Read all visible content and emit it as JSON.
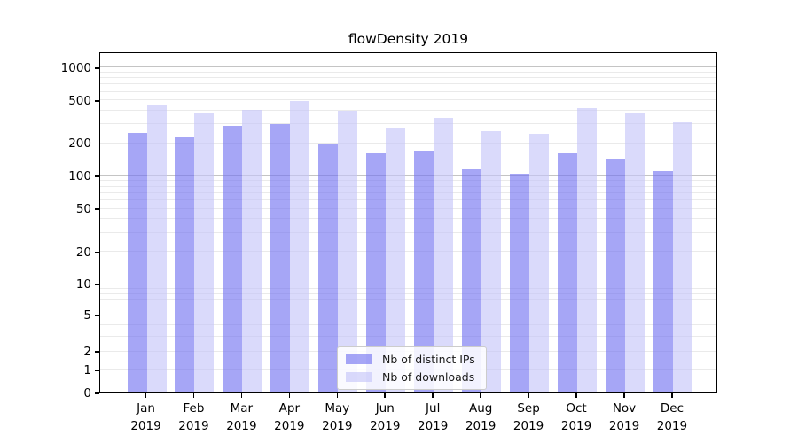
{
  "chart_data": {
    "type": "bar",
    "title": "flowDensity 2019",
    "scale": "symlog",
    "ylim": [
      0,
      1400
    ],
    "yticks": [
      0,
      1,
      2,
      5,
      10,
      20,
      50,
      100,
      200,
      500,
      1000
    ],
    "categories": [
      "Jan",
      "Feb",
      "Mar",
      "Apr",
      "May",
      "Jun",
      "Jul",
      "Aug",
      "Sep",
      "Oct",
      "Nov",
      "Dec"
    ],
    "year": "2019",
    "series": [
      {
        "key": "ips",
        "name": "Nb of distinct IPs",
        "color": "rgba(112,112,240,0.62)",
        "values": [
          250,
          225,
          290,
          300,
          195,
          160,
          170,
          115,
          105,
          160,
          145,
          110
        ]
      },
      {
        "key": "downloads",
        "name": "Nb of downloads",
        "color": "rgba(196,196,248,0.62)",
        "values": [
          450,
          375,
          405,
          485,
          395,
          280,
          340,
          260,
          245,
          420,
          375,
          310
        ]
      }
    ],
    "gridlines": {
      "minor": [
        1,
        2,
        3,
        4,
        5,
        6,
        7,
        8,
        9,
        20,
        30,
        40,
        50,
        60,
        70,
        80,
        90,
        200,
        300,
        400,
        500,
        600,
        700,
        800,
        900
      ],
      "major": [
        10,
        100,
        1000
      ]
    },
    "legend_position": "lower center",
    "colors": {
      "grid_minor": "#eaeaea",
      "grid_major": "#c4c4c4",
      "spine": "#000000",
      "background": "#ffffff"
    }
  }
}
